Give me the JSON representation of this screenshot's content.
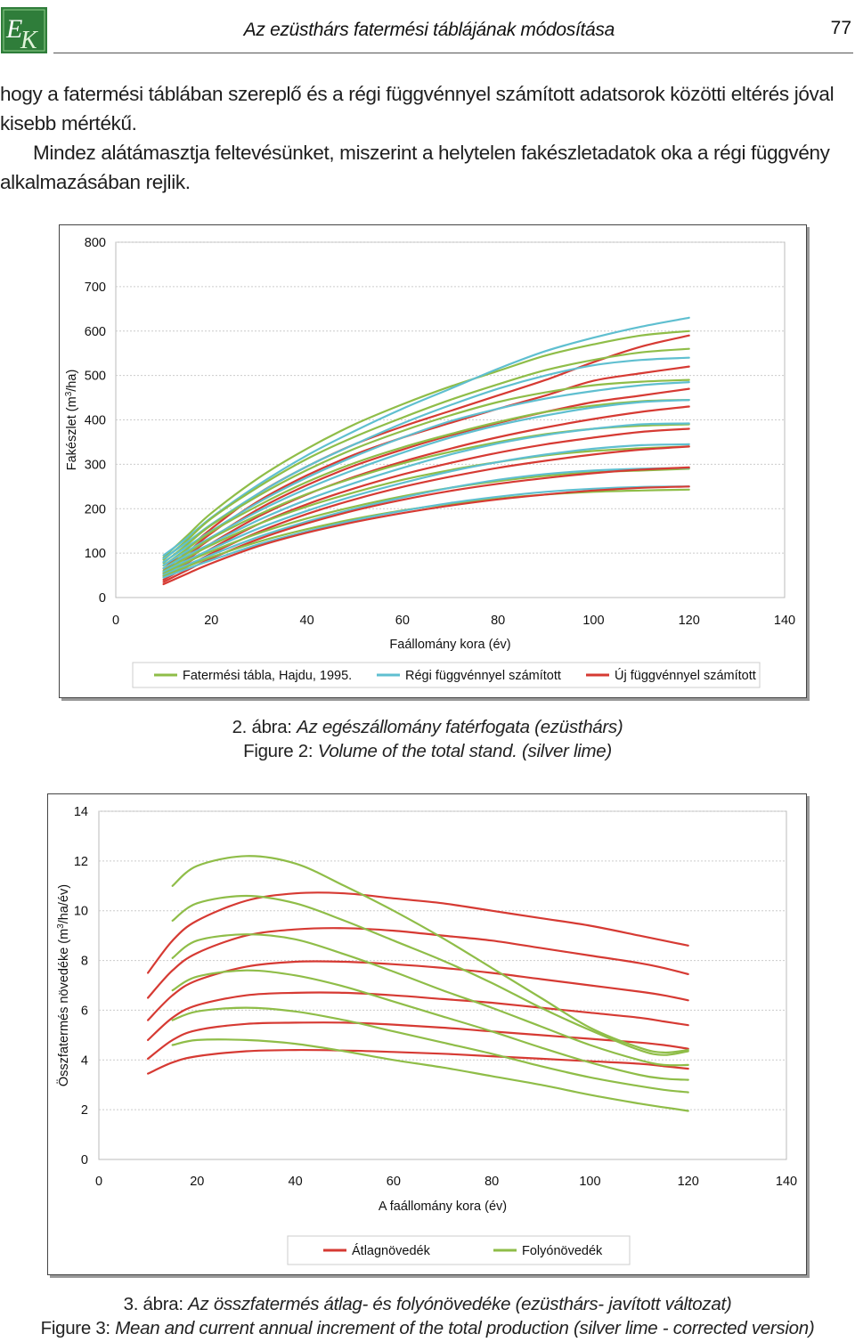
{
  "header": {
    "title": "Az ezüsthárs fatermési táblájának módosítása",
    "page_number": "77",
    "logo_letters": "EK"
  },
  "body": {
    "paragraph1": "hogy a fatermési táblában szereplő és a régi függvénnyel számított adatsorok közötti eltérés jóval kisebb mértékű.",
    "paragraph2": "Mindez alátámasztja feltevésünket, miszerint a helytelen fakészletadatok oka a régi függvény alkalmazásában rejlik."
  },
  "colors": {
    "green": "#8fbd48",
    "blue": "#5fbfd0",
    "red": "#d63a33",
    "grid": "#cccccc"
  },
  "captions": {
    "fig2_prefix": "2. ábra: ",
    "fig2_text": "Az egészállomány fatérfogata (ezüsthárs)",
    "fig2_en_prefix": "Figure 2: ",
    "fig2_en_text": "Volume of the total stand. (silver lime)",
    "fig3_prefix": "3. ábra: ",
    "fig3_text": "Az összfatermés átlag- és folyónövedéke (ezüsthárs- javított változat)",
    "fig3_en_prefix": "Figure 3: ",
    "fig3_en_text": "Mean and current annual increment of the total production (silver lime - corrected version)"
  },
  "chart_data": [
    {
      "type": "line",
      "xlabel": "Faállomány kora (év)",
      "ylabel_prefix": "Fakészlet (m",
      "ylabel_sup": "3",
      "ylabel_suffix": "/ha)",
      "xlim": [
        0,
        140
      ],
      "ylim": [
        0,
        800
      ],
      "xticks": [
        "0",
        "20",
        "40",
        "60",
        "80",
        "100",
        "120",
        "140"
      ],
      "yticks": [
        "0",
        "100",
        "200",
        "300",
        "400",
        "500",
        "600",
        "700",
        "800"
      ],
      "grid": true,
      "legend_position": "bottom",
      "legend": [
        {
          "label": "Fatermési tábla, Hajdu, 1995.",
          "color": "#8fbd48"
        },
        {
          "label": "Régi függvénnyel számított",
          "color": "#5fbfd0"
        },
        {
          "label": "Új függvénnyel számított",
          "color": "#d63a33"
        }
      ],
      "x": [
        10,
        15,
        20,
        30,
        40,
        50,
        60,
        70,
        80,
        90,
        100,
        110,
        120
      ],
      "series": [
        {
          "color": "#8fbd48",
          "values": [
            90,
            140,
            190,
            270,
            335,
            390,
            435,
            475,
            510,
            545,
            570,
            590,
            600
          ]
        },
        {
          "color": "#5fbfd0",
          "values": [
            95,
            135,
            180,
            255,
            320,
            375,
            425,
            470,
            515,
            555,
            585,
            610,
            630
          ]
        },
        {
          "color": "#d63a33",
          "values": [
            65,
            110,
            155,
            235,
            295,
            345,
            385,
            420,
            455,
            490,
            530,
            565,
            590
          ]
        },
        {
          "color": "#8fbd48",
          "values": [
            85,
            130,
            178,
            250,
            312,
            362,
            405,
            445,
            480,
            512,
            535,
            552,
            560
          ]
        },
        {
          "color": "#5fbfd0",
          "values": [
            88,
            125,
            165,
            235,
            295,
            345,
            392,
            433,
            470,
            500,
            523,
            535,
            540
          ]
        },
        {
          "color": "#d63a33",
          "values": [
            60,
            102,
            145,
            218,
            275,
            322,
            360,
            393,
            425,
            455,
            488,
            505,
            520
          ]
        },
        {
          "color": "#8fbd48",
          "values": [
            78,
            120,
            163,
            230,
            287,
            335,
            375,
            410,
            440,
            462,
            478,
            486,
            490
          ]
        },
        {
          "color": "#5fbfd0",
          "values": [
            80,
            115,
            150,
            215,
            270,
            318,
            360,
            397,
            425,
            448,
            465,
            478,
            485
          ]
        },
        {
          "color": "#d63a33",
          "values": [
            55,
            94,
            133,
            200,
            253,
            297,
            333,
            365,
            393,
            418,
            440,
            455,
            470
          ]
        },
        {
          "color": "#8fbd48",
          "values": [
            72,
            110,
            148,
            208,
            260,
            303,
            338,
            368,
            395,
            418,
            432,
            442,
            445
          ]
        },
        {
          "color": "#5fbfd0",
          "values": [
            73,
            105,
            136,
            195,
            245,
            288,
            326,
            360,
            388,
            410,
            428,
            440,
            445
          ]
        },
        {
          "color": "#d63a33",
          "values": [
            50,
            86,
            122,
            183,
            232,
            272,
            306,
            335,
            361,
            383,
            402,
            418,
            430
          ]
        },
        {
          "color": "#8fbd48",
          "values": [
            66,
            100,
            133,
            187,
            233,
            270,
            302,
            328,
            350,
            368,
            380,
            387,
            390
          ]
        },
        {
          "color": "#5fbfd0",
          "values": [
            66,
            95,
            122,
            175,
            220,
            258,
            292,
            322,
            347,
            366,
            380,
            390,
            392
          ]
        },
        {
          "color": "#d63a33",
          "values": [
            45,
            78,
            110,
            166,
            210,
            246,
            277,
            303,
            326,
            345,
            360,
            373,
            380
          ]
        },
        {
          "color": "#8fbd48",
          "values": [
            60,
            90,
            118,
            166,
            205,
            237,
            265,
            287,
            305,
            320,
            330,
            336,
            340
          ]
        },
        {
          "color": "#5fbfd0",
          "values": [
            58,
            84,
            109,
            156,
            195,
            229,
            258,
            284,
            305,
            322,
            335,
            343,
            345
          ]
        },
        {
          "color": "#d63a33",
          "values": [
            40,
            70,
            99,
            148,
            188,
            221,
            249,
            272,
            292,
            308,
            322,
            333,
            340
          ]
        },
        {
          "color": "#8fbd48",
          "values": [
            54,
            80,
            104,
            145,
            178,
            205,
            228,
            247,
            262,
            274,
            282,
            286,
            290
          ]
        },
        {
          "color": "#5fbfd0",
          "values": [
            51,
            74,
            96,
            137,
            171,
            200,
            225,
            247,
            265,
            278,
            286,
            290,
            292
          ]
        },
        {
          "color": "#d63a33",
          "values": [
            35,
            62,
            88,
            132,
            167,
            196,
            220,
            240,
            256,
            269,
            280,
            288,
            293
          ]
        },
        {
          "color": "#8fbd48",
          "values": [
            48,
            70,
            91,
            126,
            154,
            177,
            196,
            211,
            223,
            232,
            238,
            241,
            243
          ]
        },
        {
          "color": "#5fbfd0",
          "values": [
            45,
            65,
            84,
            120,
            149,
            174,
            195,
            213,
            227,
            238,
            245,
            249,
            250
          ]
        },
        {
          "color": "#d63a33",
          "values": [
            30,
            54,
            77,
            116,
            146,
            170,
            190,
            207,
            221,
            232,
            241,
            247,
            250
          ]
        }
      ]
    },
    {
      "type": "line",
      "xlabel": "A faállomány kora (év)",
      "ylabel_prefix": "Összfatermés növedéke (m",
      "ylabel_sup": "3",
      "ylabel_suffix": "/ha/év)",
      "xlim": [
        0,
        140
      ],
      "ylim": [
        0,
        14
      ],
      "xticks": [
        "0",
        "20",
        "40",
        "60",
        "80",
        "100",
        "120",
        "140"
      ],
      "yticks": [
        "0",
        "2",
        "4",
        "6",
        "8",
        "10",
        "12",
        "14"
      ],
      "grid": true,
      "legend_position": "bottom",
      "legend": [
        {
          "label": "Átlagnövedék",
          "color": "#d63a33"
        },
        {
          "label": "Folyónövedék",
          "color": "#8fbd48"
        }
      ],
      "x": [
        10,
        15,
        20,
        30,
        40,
        50,
        60,
        70,
        80,
        90,
        100,
        110,
        115,
        120
      ],
      "series": [
        {
          "color": "#d63a33",
          "values": [
            7.5,
            8.8,
            9.6,
            10.4,
            10.7,
            10.7,
            10.5,
            10.3,
            10.0,
            9.7,
            9.4,
            9.0,
            8.8,
            8.6
          ]
        },
        {
          "color": "#d63a33",
          "values": [
            6.5,
            7.6,
            8.3,
            9.0,
            9.25,
            9.3,
            9.2,
            9.0,
            8.8,
            8.5,
            8.2,
            7.9,
            7.7,
            7.45
          ]
        },
        {
          "color": "#d63a33",
          "values": [
            5.6,
            6.6,
            7.2,
            7.75,
            7.95,
            7.95,
            7.85,
            7.7,
            7.5,
            7.25,
            7.0,
            6.75,
            6.6,
            6.4
          ]
        },
        {
          "color": "#d63a33",
          "values": [
            4.8,
            5.7,
            6.2,
            6.6,
            6.7,
            6.7,
            6.6,
            6.45,
            6.3,
            6.1,
            5.9,
            5.7,
            5.55,
            5.4
          ]
        },
        {
          "color": "#d63a33",
          "values": [
            4.05,
            4.8,
            5.2,
            5.45,
            5.5,
            5.5,
            5.42,
            5.3,
            5.15,
            5.0,
            4.85,
            4.7,
            4.6,
            4.45
          ]
        },
        {
          "color": "#d63a33",
          "values": [
            3.45,
            3.9,
            4.15,
            4.35,
            4.4,
            4.38,
            4.32,
            4.25,
            4.15,
            4.05,
            3.95,
            3.85,
            3.75,
            3.65
          ]
        },
        {
          "color": "#8fbd48",
          "values": [
            null,
            11.0,
            11.8,
            12.2,
            11.9,
            11.0,
            10.0,
            8.9,
            7.7,
            6.5,
            5.3,
            4.5,
            4.3,
            4.4
          ]
        },
        {
          "color": "#8fbd48",
          "values": [
            null,
            9.6,
            10.3,
            10.6,
            10.3,
            9.6,
            8.8,
            8.0,
            7.1,
            6.1,
            5.2,
            4.4,
            4.2,
            4.35
          ]
        },
        {
          "color": "#8fbd48",
          "values": [
            null,
            8.1,
            8.8,
            9.05,
            8.85,
            8.25,
            7.55,
            6.8,
            6.1,
            5.35,
            4.6,
            4.0,
            3.8,
            3.8
          ]
        },
        {
          "color": "#8fbd48",
          "values": [
            null,
            6.8,
            7.35,
            7.6,
            7.4,
            6.95,
            6.35,
            5.75,
            5.15,
            4.5,
            3.9,
            3.4,
            3.25,
            3.2
          ]
        },
        {
          "color": "#8fbd48",
          "values": [
            null,
            5.6,
            5.95,
            6.1,
            5.95,
            5.6,
            5.15,
            4.7,
            4.25,
            3.75,
            3.3,
            2.95,
            2.8,
            2.7
          ]
        },
        {
          "color": "#8fbd48",
          "values": [
            null,
            4.6,
            4.8,
            4.8,
            4.65,
            4.35,
            4.0,
            3.7,
            3.35,
            3.0,
            2.6,
            2.25,
            2.1,
            1.95
          ]
        }
      ]
    }
  ]
}
